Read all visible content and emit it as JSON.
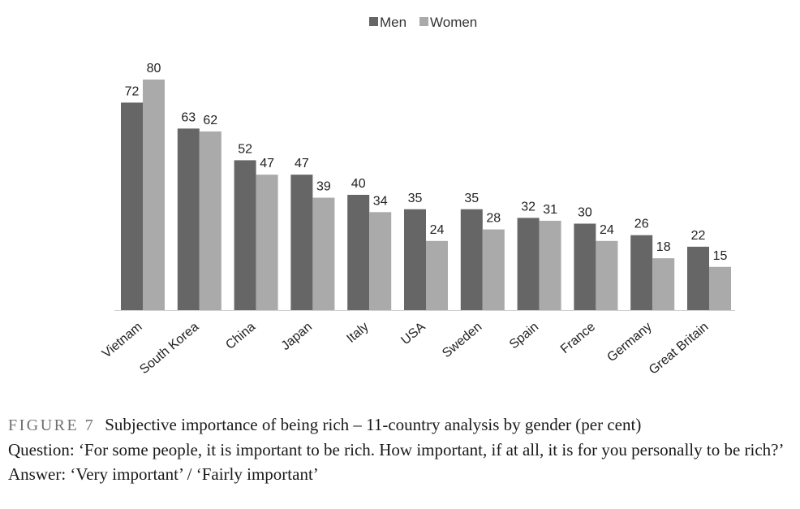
{
  "chart_data": {
    "type": "bar",
    "categories": [
      "Vietnam",
      "South Korea",
      "China",
      "Japan",
      "Italy",
      "USA",
      "Sweden",
      "Spain",
      "France",
      "Germany",
      "Great Britain"
    ],
    "series": [
      {
        "name": "Men",
        "color": "#666666",
        "values": [
          72,
          63,
          52,
          47,
          40,
          35,
          35,
          32,
          30,
          26,
          22
        ]
      },
      {
        "name": "Women",
        "color": "#aaaaaa",
        "values": [
          80,
          62,
          47,
          39,
          34,
          24,
          28,
          31,
          24,
          18,
          15
        ]
      }
    ],
    "ylim": [
      0,
      80
    ],
    "legend_position": "top-center",
    "grid": false
  },
  "caption": {
    "figure_label": "FIGURE 7",
    "title": "Subjective importance of being rich – 11-country analysis by gender (per cent)",
    "question": "Question: ‘For some people, it is important to be rich. How important, if at all, it is for you personally to be rich?’",
    "answer": "Answer: ‘Very important’ / ‘Fairly important’"
  }
}
